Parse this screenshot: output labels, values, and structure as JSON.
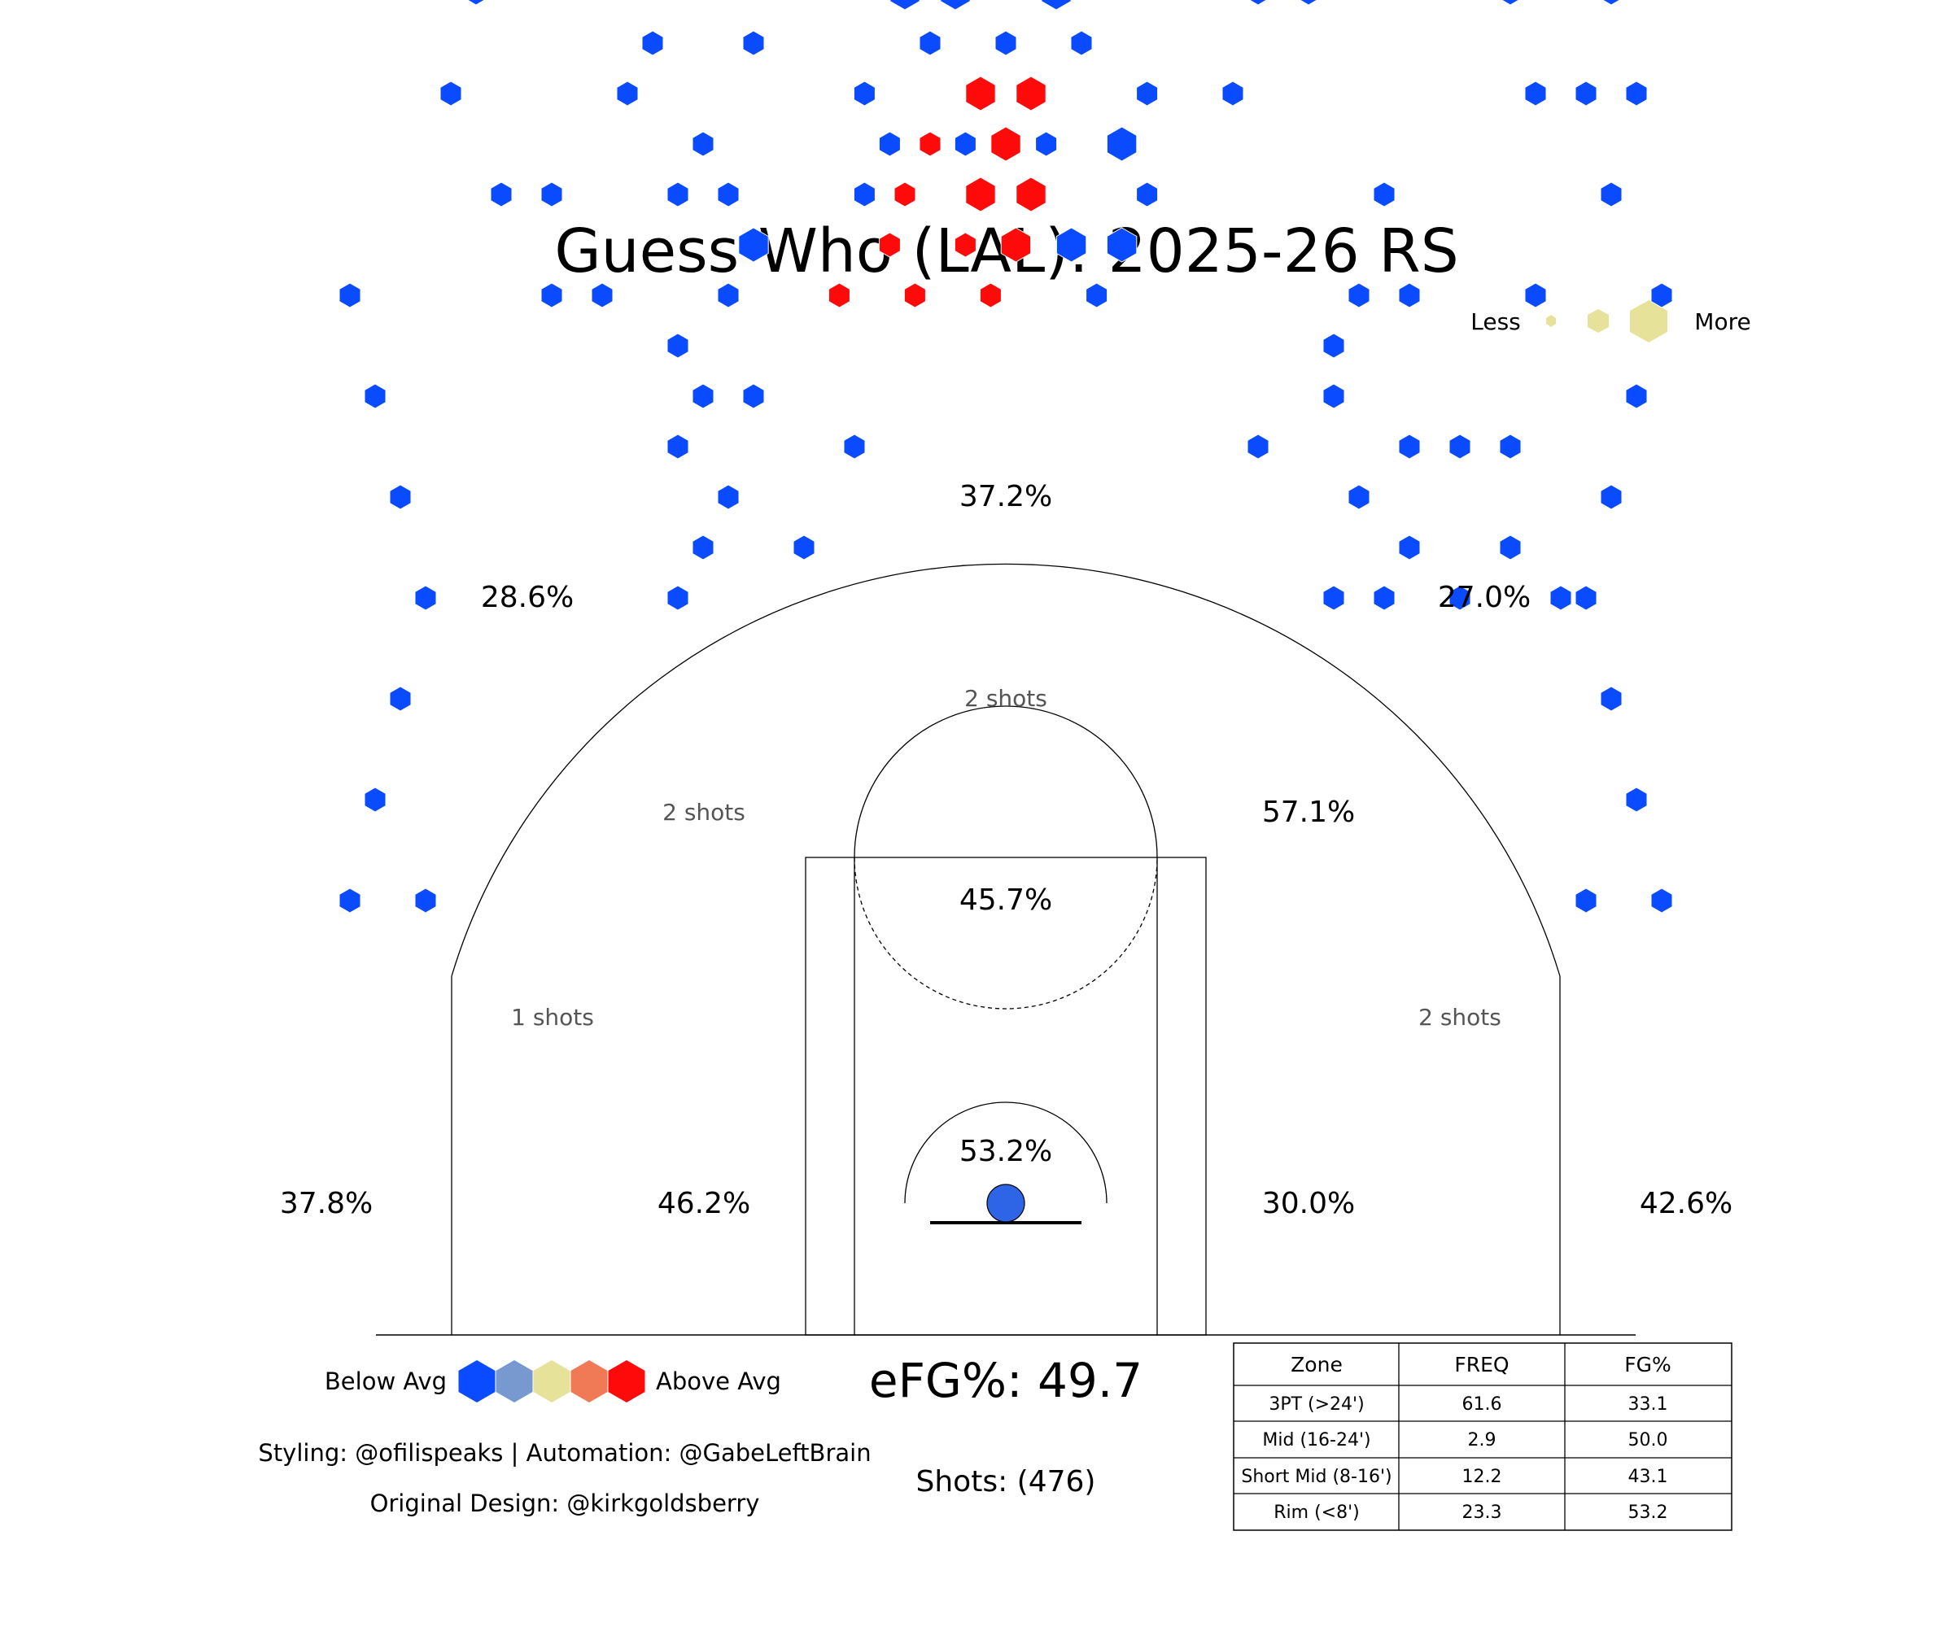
{
  "chart_data": {
    "type": "hexbin-shot-chart",
    "title": "Guess Who (LAL): 2025-26 RS",
    "size_legend": {
      "less_label": "Less",
      "more_label": "More"
    },
    "color_legend": {
      "below_label": "Below Avg",
      "above_label": "Above Avg",
      "colors": [
        "#0a4bff",
        "#7898d0",
        "#e6e29a",
        "#f07a55",
        "#ff0a0a"
      ]
    },
    "zones": [
      {
        "id": "left-corner-3",
        "fg_pct": "37.8%"
      },
      {
        "id": "left-wing-3",
        "fg_pct": "28.6%"
      },
      {
        "id": "top-key-3",
        "fg_pct": "37.2%"
      },
      {
        "id": "right-wing-3",
        "fg_pct": "27.0%"
      },
      {
        "id": "right-corner-3",
        "fg_pct": "42.6%"
      },
      {
        "id": "left-baseline-mid",
        "fg_pct": "46.2%"
      },
      {
        "id": "right-elbow-mid",
        "fg_pct": "57.1%"
      },
      {
        "id": "right-baseline-mid",
        "fg_pct": "30.0%"
      },
      {
        "id": "paint-short-mid",
        "fg_pct": "45.7%"
      },
      {
        "id": "rim",
        "fg_pct": "53.2%"
      },
      {
        "id": "left-long-mid-shots",
        "shots": "1 shots"
      },
      {
        "id": "left-wing-mid-shots",
        "shots": "2 shots"
      },
      {
        "id": "top-mid-shots",
        "shots": "2 shots"
      },
      {
        "id": "right-long-mid-shots",
        "shots": "2 shots"
      }
    ],
    "efg_label": "eFG%: 49.7",
    "shots_label": "Shots: (476)",
    "credits": {
      "line1": "Styling: @ofilispeaks | Automation: @GabeLeftBrain",
      "line2": "Original Design: @kirkgoldsberry"
    },
    "table": {
      "columns": [
        "Zone",
        "FREQ",
        "FG%"
      ],
      "rows": [
        {
          "zone": "3PT (>24')",
          "freq": "61.6",
          "fg": "33.1"
        },
        {
          "zone": "Mid (16-24')",
          "freq": "2.9",
          "fg": "50.0"
        },
        {
          "zone": "Short Mid (8-16')",
          "freq": "12.2",
          "fg": "43.1"
        },
        {
          "zone": "Rim (<8')",
          "freq": "23.3",
          "fg": "53.2"
        }
      ]
    },
    "hexbins": [
      {
        "x": -6.6,
        "y": 36.0,
        "size": 2,
        "color": 4
      },
      {
        "x": -4.6,
        "y": 38.0,
        "size": 2,
        "color": 4
      },
      {
        "x": -3.6,
        "y": 36.0,
        "size": 2,
        "color": 4
      },
      {
        "x": -1.6,
        "y": 38.0,
        "size": 2,
        "color": 4
      },
      {
        "x": -0.6,
        "y": 36.0,
        "size": 2,
        "color": 4
      },
      {
        "x": 0.4,
        "y": 38.0,
        "size": 3,
        "color": 4
      },
      {
        "x": -4.0,
        "y": 40.0,
        "size": 2,
        "color": 4
      },
      {
        "x": -3.0,
        "y": 42.0,
        "size": 2,
        "color": 4
      },
      {
        "x": -1.0,
        "y": 40.0,
        "size": 3,
        "color": 4
      },
      {
        "x": 0.0,
        "y": 42.0,
        "size": 3,
        "color": 4
      },
      {
        "x": 1.0,
        "y": 40.0,
        "size": 3,
        "color": 4
      },
      {
        "x": -1.0,
        "y": 44.0,
        "size": 3,
        "color": 4
      },
      {
        "x": 1.0,
        "y": 44.0,
        "size": 3,
        "color": 4
      },
      {
        "x": -5.6,
        "y": 40.0,
        "size": 2,
        "color": 0
      },
      {
        "x": 5.6,
        "y": 40.0,
        "size": 2,
        "color": 0
      },
      {
        "x": -3.0,
        "y": 46.0,
        "size": 2,
        "color": 0
      },
      {
        "x": 0.0,
        "y": 46.0,
        "size": 2,
        "color": 0
      },
      {
        "x": 3.0,
        "y": 46.0,
        "size": 2,
        "color": 0
      },
      {
        "x": -5.6,
        "y": 44.0,
        "size": 2,
        "color": 0
      },
      {
        "x": 5.6,
        "y": 44.0,
        "size": 2,
        "color": 0
      },
      {
        "x": 4.6,
        "y": 42.0,
        "size": 3,
        "color": 0
      },
      {
        "x": -4.6,
        "y": 42.0,
        "size": 2,
        "color": 0
      },
      {
        "x": 3.6,
        "y": 36.0,
        "size": 2,
        "color": 0
      },
      {
        "x": 2.6,
        "y": 38.0,
        "size": 3,
        "color": 0
      },
      {
        "x": 4.6,
        "y": 38.0,
        "size": 3,
        "color": 0
      },
      {
        "x": -1.6,
        "y": 42.0,
        "size": 2,
        "color": 0
      },
      {
        "x": 1.6,
        "y": 42.0,
        "size": 2,
        "color": 0
      },
      {
        "x": -2.0,
        "y": 48.0,
        "size": 3,
        "color": 0
      },
      {
        "x": 0.0,
        "y": 50.0,
        "size": 3,
        "color": 0
      },
      {
        "x": 2.0,
        "y": 48.0,
        "size": 3,
        "color": 0
      },
      {
        "x": -4.0,
        "y": 48.0,
        "size": 3,
        "color": 0
      },
      {
        "x": -1.0,
        "y": 52.0,
        "size": 2,
        "color": 0
      },
      {
        "x": 1.0,
        "y": 52.0,
        "size": 2,
        "color": 0
      },
      {
        "x": -6.0,
        "y": 50.0,
        "size": 2,
        "color": 0
      },
      {
        "x": 6.0,
        "y": 50.0,
        "size": 2,
        "color": 0
      },
      {
        "x": 3.0,
        "y": 52.0,
        "size": 2,
        "color": 0
      },
      {
        "x": -3.0,
        "y": 52.0,
        "size": 2,
        "color": 0
      },
      {
        "x": -5.0,
        "y": 56.0,
        "size": 2,
        "color": 0
      },
      {
        "x": -3.0,
        "y": 56.0,
        "size": 2,
        "color": 0
      },
      {
        "x": 3.0,
        "y": 56.0,
        "size": 2,
        "color": 0
      },
      {
        "x": 5.0,
        "y": 56.0,
        "size": 2,
        "color": 0
      },
      {
        "x": 0.0,
        "y": 54.0,
        "size": 3,
        "color": 0
      },
      {
        "x": -5.0,
        "y": 60.0,
        "size": 2,
        "color": 0
      },
      {
        "x": 5.0,
        "y": 60.0,
        "size": 2,
        "color": 0
      },
      {
        "x": -3.0,
        "y": 60.0,
        "size": 2,
        "color": 0
      },
      {
        "x": 3.0,
        "y": 60.0,
        "size": 2,
        "color": 0
      },
      {
        "x": 0.0,
        "y": 62.0,
        "size": 2,
        "color": 0
      },
      {
        "x": -10.0,
        "y": 52.0,
        "size": 2,
        "color": 0
      },
      {
        "x": 9.0,
        "y": 52.0,
        "size": 2,
        "color": 0
      },
      {
        "x": 12.0,
        "y": 48.0,
        "size": 2,
        "color": 0
      },
      {
        "x": 10.0,
        "y": 48.0,
        "size": 2,
        "color": 0
      },
      {
        "x": -10.0,
        "y": 46.0,
        "size": 2,
        "color": 0
      },
      {
        "x": 9.0,
        "y": 44.0,
        "size": 2,
        "color": 0
      },
      {
        "x": 13.0,
        "y": 32.0,
        "size": 2,
        "color": 0
      },
      {
        "x": 13.0,
        "y": 34.0,
        "size": 2,
        "color": 0
      },
      {
        "x": -10.0,
        "y": 38.0,
        "size": 3,
        "color": 0
      },
      {
        "x": -11.0,
        "y": 40.0,
        "size": 2,
        "color": 0
      },
      {
        "x": -12.0,
        "y": 42.0,
        "size": 2,
        "color": 0
      },
      {
        "x": -13.0,
        "y": 40.0,
        "size": 2,
        "color": 0
      },
      {
        "x": -15.0,
        "y": 44.0,
        "size": 2,
        "color": 0
      },
      {
        "x": -14.0,
        "y": 46.0,
        "size": 2,
        "color": 0
      },
      {
        "x": -10.0,
        "y": 32.0,
        "size": 2,
        "color": 0
      },
      {
        "x": -12.0,
        "y": 32.0,
        "size": 2,
        "color": 0
      },
      {
        "x": -13.0,
        "y": 30.0,
        "size": 2,
        "color": 0
      },
      {
        "x": -11.0,
        "y": 36.0,
        "size": 2,
        "color": 0
      },
      {
        "x": -13.0,
        "y": 34.0,
        "size": 2,
        "color": 0
      },
      {
        "x": -6.0,
        "y": 30.0,
        "size": 2,
        "color": 0
      },
      {
        "x": -13.0,
        "y": 24.0,
        "size": 2,
        "color": 0
      },
      {
        "x": 13.0,
        "y": 24.0,
        "size": 2,
        "color": 0
      },
      {
        "x": -8.0,
        "y": 26.0,
        "size": 2,
        "color": 0
      },
      {
        "x": 14.0,
        "y": 28.0,
        "size": 2,
        "color": 0
      },
      {
        "x": 16.0,
        "y": 30.0,
        "size": 2,
        "color": 0
      },
      {
        "x": 18.0,
        "y": 30.0,
        "size": 2,
        "color": 0
      },
      {
        "x": 14.0,
        "y": 36.0,
        "size": 2,
        "color": 0
      },
      {
        "x": -12.0,
        "y": 26.0,
        "size": 2,
        "color": 0
      },
      {
        "x": -11.0,
        "y": 28.0,
        "size": 2,
        "color": 0
      },
      {
        "x": 10.0,
        "y": 30.0,
        "size": 2,
        "color": 0
      },
      {
        "x": 15.0,
        "y": 24.0,
        "size": 2,
        "color": 0
      },
      {
        "x": 16.0,
        "y": 26.0,
        "size": 2,
        "color": 0
      },
      {
        "x": 18.0,
        "y": 24.0,
        "size": 2,
        "color": 0
      },
      {
        "x": 20.0,
        "y": 26.0,
        "size": 2,
        "color": 0
      },
      {
        "x": 20.0,
        "y": 30.0,
        "size": 2,
        "color": 0
      },
      {
        "x": 22.0,
        "y": 24.0,
        "size": 2,
        "color": 0
      },
      {
        "x": 21.0,
        "y": 36.0,
        "size": 2,
        "color": 0
      },
      {
        "x": -18.0,
        "y": 36.0,
        "size": 2,
        "color": 0
      },
      {
        "x": -16.0,
        "y": 36.0,
        "size": 2,
        "color": 0
      },
      {
        "x": -20.0,
        "y": 40.0,
        "size": 2,
        "color": 0
      },
      {
        "x": -18.0,
        "y": 40.0,
        "size": 2,
        "color": 0
      },
      {
        "x": -22.0,
        "y": 44.0,
        "size": 2,
        "color": 0
      },
      {
        "x": 21.0,
        "y": 44.0,
        "size": 2,
        "color": 0
      },
      {
        "x": -21.0,
        "y": 48.0,
        "size": 2,
        "color": 0
      },
      {
        "x": 20.0,
        "y": 48.0,
        "size": 2,
        "color": 0
      },
      {
        "x": -23.0,
        "y": 52.0,
        "size": 2,
        "color": 0
      },
      {
        "x": 23.0,
        "y": 52.0,
        "size": 2,
        "color": 0
      },
      {
        "x": 15.0,
        "y": 40.0,
        "size": 2,
        "color": 0
      },
      {
        "x": 16.0,
        "y": 36.0,
        "size": 2,
        "color": 0
      },
      {
        "x": 24.0,
        "y": 40.0,
        "size": 2,
        "color": 0
      },
      {
        "x": 23.0,
        "y": 44.0,
        "size": 2,
        "color": 0
      },
      {
        "x": 25.0,
        "y": 44.0,
        "size": 2,
        "color": 0
      },
      {
        "x": 24.0,
        "y": 48.0,
        "size": 2,
        "color": 0
      },
      {
        "x": -15.0,
        "y": 52.0,
        "size": 2,
        "color": 0
      },
      {
        "x": 15.0,
        "y": 52.0,
        "size": 2,
        "color": 0
      },
      {
        "x": -16.0,
        "y": 56.0,
        "size": 2,
        "color": 0
      },
      {
        "x": 16.0,
        "y": 56.0,
        "size": 2,
        "color": 0
      },
      {
        "x": -8.0,
        "y": 58.0,
        "size": 2,
        "color": 0
      },
      {
        "x": 8.0,
        "y": 58.0,
        "size": 2,
        "color": 0
      },
      {
        "x": -26.0,
        "y": 36.0,
        "size": 2,
        "color": 0
      },
      {
        "x": 26.0,
        "y": 36.0,
        "size": 2,
        "color": 0
      },
      {
        "x": -25.0,
        "y": 32.0,
        "size": 2,
        "color": 0
      },
      {
        "x": 25.0,
        "y": 32.0,
        "size": 2,
        "color": 0
      },
      {
        "x": -24.0,
        "y": 28.0,
        "size": 2,
        "color": 0
      },
      {
        "x": 24.0,
        "y": 28.0,
        "size": 2,
        "color": 0
      },
      {
        "x": -23.0,
        "y": 24.0,
        "size": 2,
        "color": 0
      },
      {
        "x": 23.0,
        "y": 24.0,
        "size": 2,
        "color": 0
      },
      {
        "x": -24.0,
        "y": 20.0,
        "size": 2,
        "color": 0
      },
      {
        "x": 24.0,
        "y": 20.0,
        "size": 2,
        "color": 0
      },
      {
        "x": -25.0,
        "y": 16.0,
        "size": 2,
        "color": 0
      },
      {
        "x": 25.0,
        "y": 16.0,
        "size": 2,
        "color": 0
      },
      {
        "x": -26.0,
        "y": 12.0,
        "size": 2,
        "color": 0
      },
      {
        "x": 26.0,
        "y": 12.0,
        "size": 2,
        "color": 0
      },
      {
        "x": -23.0,
        "y": 12.0,
        "size": 2,
        "color": 0
      },
      {
        "x": 23.0,
        "y": 12.0,
        "size": 2,
        "color": 0
      }
    ]
  }
}
